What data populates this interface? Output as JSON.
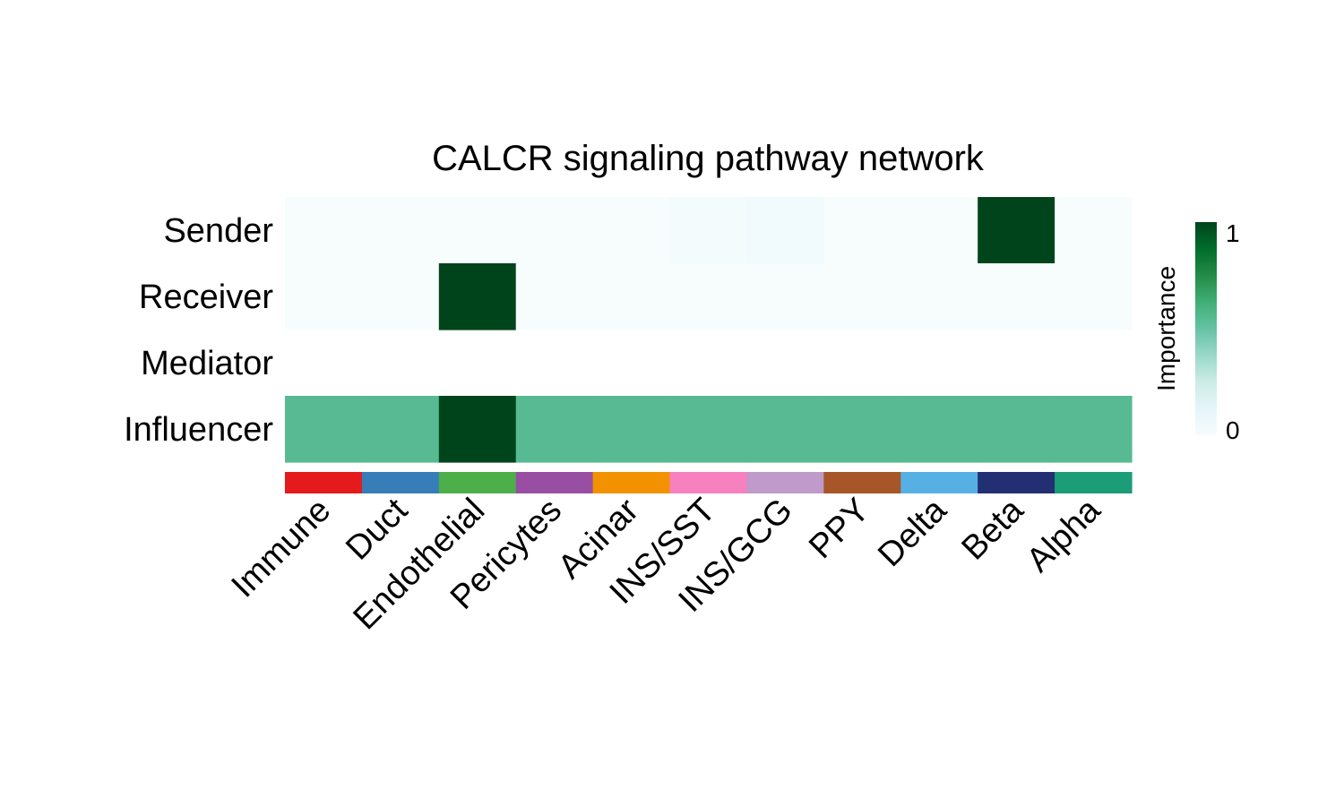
{
  "chart_data": {
    "type": "heatmap",
    "title": "CALCR signaling pathway network",
    "rows": [
      "Sender",
      "Receiver",
      "Mediator",
      "Influencer"
    ],
    "columns": [
      "Immune",
      "Duct",
      "Endothelial",
      "Pericytes",
      "Acinar",
      "INS/SST",
      "INS/GCG",
      "PPY",
      "Delta",
      "Beta",
      "Alpha"
    ],
    "column_colors": [
      "#E41A1C",
      "#377EB8",
      "#4DAF4A",
      "#984EA3",
      "#F39200",
      "#F781BF",
      "#BF9ACA",
      "#A65628",
      "#56B0E4",
      "#232F73",
      "#1B9E77"
    ],
    "values": [
      [
        0,
        0,
        0,
        0,
        0,
        0.02,
        0.04,
        0,
        0,
        1,
        0
      ],
      [
        0,
        0,
        1,
        0,
        0,
        0,
        0,
        0,
        0,
        0,
        0
      ],
      [
        null,
        null,
        null,
        null,
        null,
        null,
        null,
        null,
        null,
        null,
        null
      ],
      [
        0.55,
        0.55,
        1,
        0.55,
        0.55,
        0.55,
        0.55,
        0.55,
        0.55,
        0.55,
        0.55
      ]
    ],
    "legend": {
      "title": "Importance",
      "min": 0,
      "max": 1,
      "ticks": [
        "0",
        "1"
      ],
      "colors": [
        "#F7FCFD",
        "#E5F5F9",
        "#CCECE6",
        "#99D8C9",
        "#66C2A4",
        "#41AE76",
        "#238B45",
        "#006D2C",
        "#00441B"
      ],
      "placement": "right"
    }
  }
}
